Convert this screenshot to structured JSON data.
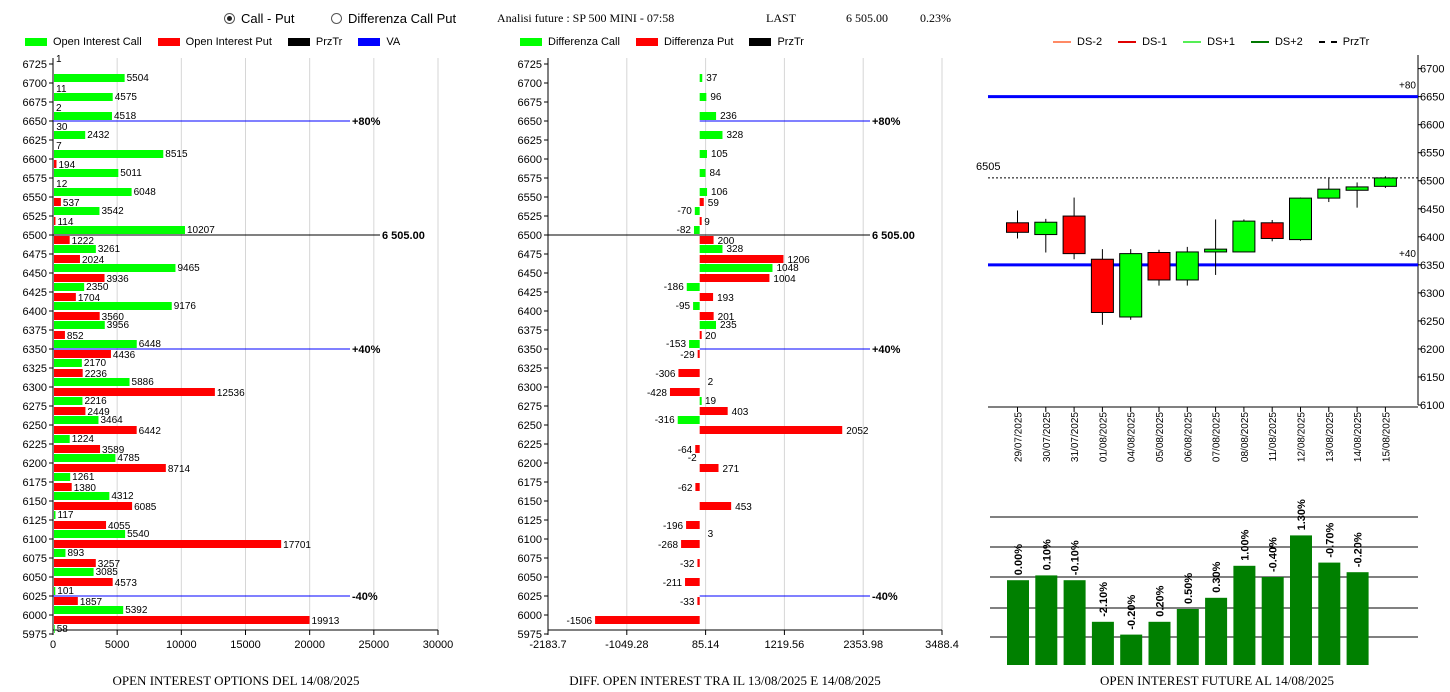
{
  "header": {
    "radio_call_put": "Call - Put",
    "radio_diff": "Differenza Call Put",
    "selected_mode": "Call - Put",
    "analysis_label": "Analisi future : SP 500 MINI - 07:58",
    "last_label": "LAST",
    "last_value": "6 505.00",
    "last_change": "0.23%"
  },
  "colors": {
    "call": "#00ff00",
    "put": "#ff0000",
    "prztr": "#000000",
    "va": "#0000ff",
    "future_bar": "#008000"
  },
  "chart_data": [
    {
      "type": "bar",
      "orientation": "horizontal",
      "title": "OPEN INTEREST OPTIONS DEL 14/08/2025",
      "legend": [
        "Open Interest Call",
        "Open Interest Put",
        "PrzTr",
        "VA"
      ],
      "categories": [
        "6725",
        "6700",
        "6675",
        "6650",
        "6625",
        "6600",
        "6575",
        "6550",
        "6525",
        "6500",
        "6475",
        "6450",
        "6425",
        "6400",
        "6375",
        "6350",
        "6325",
        "6300",
        "6275",
        "6250",
        "6225",
        "6200",
        "6175",
        "6150",
        "6125",
        "6100",
        "6075",
        "6050",
        "6025",
        "6000",
        "5975"
      ],
      "series": [
        {
          "name": "Open Interest Call",
          "values": [
            1,
            5504,
            4575,
            4518,
            2432,
            8515,
            5011,
            6048,
            3542,
            10207,
            3261,
            9465,
            2350,
            9176,
            3956,
            6448,
            2170,
            5886,
            2216,
            3464,
            1224,
            4785,
            1261,
            4312,
            117,
            5540,
            893,
            3085,
            101,
            5392,
            58
          ]
        },
        {
          "name": "Open Interest Put",
          "values": [
            null,
            11,
            2,
            30,
            7,
            194,
            12,
            537,
            114,
            1222,
            2024,
            3936,
            1704,
            3560,
            852,
            4436,
            2236,
            12536,
            2449,
            6442,
            3589,
            8714,
            1380,
            6085,
            4055,
            17701,
            3257,
            4573,
            1857,
            19913,
            null
          ]
        }
      ],
      "xticks": [
        "0",
        "5000",
        "10000",
        "15000",
        "20000",
        "25000",
        "30000"
      ],
      "xlim": [
        0,
        30000
      ],
      "reference_lines": [
        {
          "level": "6650",
          "label": "+80%",
          "color": "va"
        },
        {
          "level": "6500",
          "label": "6 505.00",
          "color": "prztr"
        },
        {
          "level": "6350",
          "label": "+40%",
          "color": "va"
        },
        {
          "level": "6025",
          "label": "-40%",
          "color": "va"
        }
      ]
    },
    {
      "type": "bar",
      "orientation": "horizontal",
      "title": "DIFF. OPEN INTEREST TRA IL 13/08/2025 E 14/08/2025",
      "legend": [
        "Differenza Call",
        "Differenza Put",
        "PrzTr"
      ],
      "categories": [
        "6725",
        "6700",
        "6675",
        "6650",
        "6625",
        "6600",
        "6575",
        "6550",
        "6525",
        "6500",
        "6475",
        "6450",
        "6425",
        "6400",
        "6375",
        "6350",
        "6325",
        "6300",
        "6275",
        "6250",
        "6225",
        "6200",
        "6175",
        "6150",
        "6125",
        "6100",
        "6075",
        "6050",
        "6025",
        "6000",
        "5975"
      ],
      "series": [
        {
          "name": "Differenza Call",
          "values": [
            null,
            37,
            96,
            236,
            328,
            105,
            84,
            106,
            -70,
            -82,
            328,
            1048,
            -186,
            -95,
            235,
            -153,
            null,
            null,
            19,
            -316,
            null,
            null,
            null,
            null,
            null,
            null,
            null,
            null,
            null,
            null,
            null
          ]
        },
        {
          "name": "Differenza Put",
          "values": [
            null,
            null,
            null,
            null,
            null,
            null,
            null,
            59,
            9,
            200,
            1206,
            1004,
            193,
            201,
            20,
            -29,
            -306,
            -428,
            403,
            2052,
            -64,
            271,
            -62,
            453,
            -196,
            -268,
            -32,
            -211,
            -33,
            -1506,
            null
          ]
        }
      ],
      "extra_labels": [
        {
          "level": "6300",
          "text": "2"
        },
        {
          "level": "6200",
          "text": "-2"
        },
        {
          "level": "6100",
          "text": "3"
        }
      ],
      "xticks": [
        "-2183.7",
        "-1049.28",
        "85.14",
        "1219.56",
        "2353.98",
        "3488.4"
      ],
      "xlim": [
        -2183.7,
        3488.4
      ],
      "reference_lines": [
        {
          "level": "6650",
          "label": "+80%",
          "color": "va"
        },
        {
          "level": "6500",
          "label": "6 505.00",
          "color": "prztr"
        },
        {
          "level": "6350",
          "label": "+40%",
          "color": "va"
        },
        {
          "level": "6025",
          "label": "-40%",
          "color": "va"
        }
      ]
    },
    {
      "type": "candlestick",
      "legend": [
        "DS-2",
        "DS-1",
        "DS+1",
        "DS+2",
        "PrzTr"
      ],
      "legend_colors": [
        "#ff8a65",
        "#e00000",
        "#55ee55",
        "#007700",
        "#000000"
      ],
      "dates": [
        "29/07/2025",
        "30/07/2025",
        "31/07/2025",
        "01/08/2025",
        "04/08/2025",
        "05/08/2025",
        "06/08/2025",
        "07/08/2025",
        "08/08/2025",
        "11/08/2025",
        "12/08/2025",
        "13/08/2025",
        "14/08/2025",
        "15/08/2025"
      ],
      "candles": [
        {
          "open": 6425,
          "close": 6408,
          "high": 6447,
          "low": 6397
        },
        {
          "open": 6404,
          "close": 6426,
          "high": 6432,
          "low": 6372
        },
        {
          "open": 6437,
          "close": 6370,
          "high": 6470,
          "low": 6360
        },
        {
          "open": 6360,
          "close": 6265,
          "high": 6378,
          "low": 6243
        },
        {
          "open": 6257,
          "close": 6370,
          "high": 6378,
          "low": 6252
        },
        {
          "open": 6372,
          "close": 6323,
          "high": 6377,
          "low": 6313
        },
        {
          "open": 6323,
          "close": 6373,
          "high": 6382,
          "low": 6313
        },
        {
          "open": 6373,
          "close": 6378,
          "high": 6431,
          "low": 6332
        },
        {
          "open": 6373,
          "close": 6428,
          "high": 6431,
          "low": 6373
        },
        {
          "open": 6425,
          "close": 6397,
          "high": 6430,
          "low": 6392
        },
        {
          "open": 6395,
          "close": 6469,
          "high": 6470,
          "low": 6393
        },
        {
          "open": 6469,
          "close": 6485,
          "high": 6504,
          "low": 6462
        },
        {
          "open": 6483,
          "close": 6489,
          "high": 6497,
          "low": 6452
        },
        {
          "open": 6490,
          "close": 6505,
          "high": 6508,
          "low": 6487
        }
      ],
      "yticks": [
        "6700",
        "6650",
        "6600",
        "6550",
        "6500",
        "6450",
        "6400",
        "6350",
        "6300",
        "6250",
        "6200",
        "6150",
        "6100"
      ],
      "ylim": [
        6100,
        6710
      ],
      "levels": [
        {
          "value": 6650,
          "label": "+80"
        },
        {
          "value": 6350,
          "label": "+40"
        }
      ],
      "przTr": {
        "value": 6505,
        "label": "6505"
      }
    },
    {
      "type": "bar",
      "title": "OPEN INTEREST FUTURE AL 14/08/2025",
      "labels": [
        "0.00%",
        "0.10%",
        "-0.10%",
        "-2.10%",
        "-0.20%",
        "0.20%",
        "0.50%",
        "0.30%",
        "1.00%",
        "-0.40%",
        "1.30%",
        "-0.70%",
        "-0.20%"
      ],
      "values": [
        0.53,
        0.56,
        0.53,
        0.27,
        0.19,
        0.27,
        0.35,
        0.42,
        0.62,
        0.55,
        0.81,
        0.64,
        0.58
      ]
    }
  ]
}
